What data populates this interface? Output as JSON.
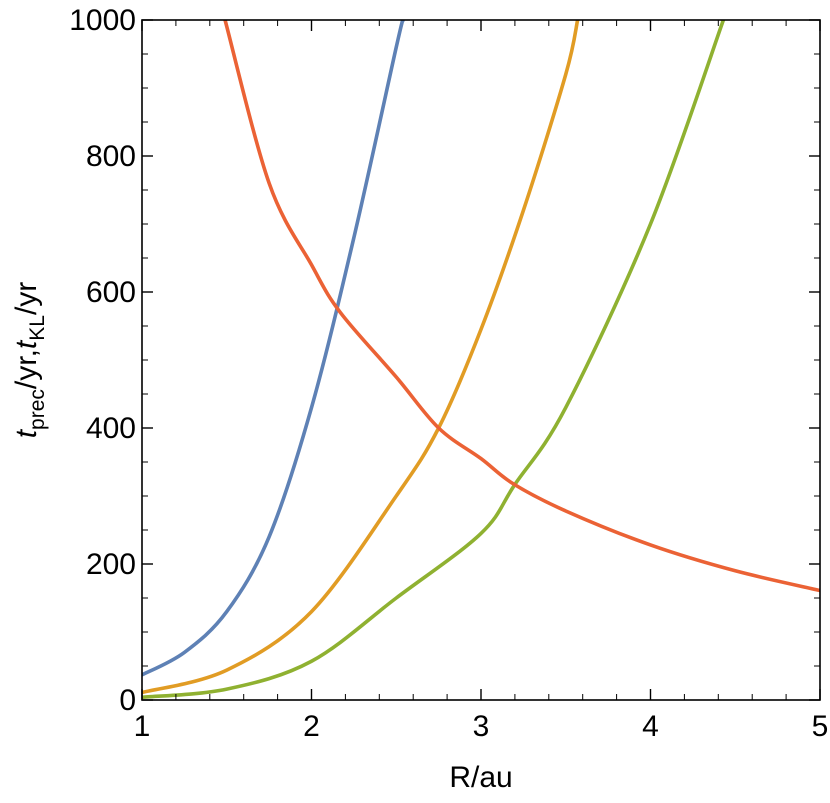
{
  "chart_data": {
    "type": "line",
    "xlabel": "R/au",
    "ylabel": {
      "t1": "t",
      "s1": "prec",
      "m1": "/yr,",
      "t2": "t",
      "s2": "KL",
      "m2": "/yr"
    },
    "xlim": [
      1,
      5
    ],
    "ylim": [
      0,
      1000
    ],
    "x_ticks": [
      1,
      2,
      3,
      4,
      5
    ],
    "y_ticks": [
      0,
      200,
      400,
      600,
      800,
      1000
    ],
    "x_tick_labels": [
      "1",
      "2",
      "3",
      "4",
      "5"
    ],
    "y_tick_labels": [
      "0",
      "200",
      "400",
      "600",
      "800",
      "1000"
    ],
    "grid": false,
    "series": [
      {
        "color": "#5E81B5",
        "x": [
          1.0,
          1.25,
          1.5,
          1.75,
          2.0,
          2.25,
          2.5,
          2.54
        ],
        "y": [
          37,
          70,
          130,
          240,
          430,
          680,
          960,
          1000
        ]
      },
      {
        "color": "#E19C24",
        "x": [
          1.0,
          1.5,
          2.0,
          2.5,
          2.75,
          3.0,
          3.25,
          3.5,
          3.57
        ],
        "y": [
          11,
          44,
          130,
          300,
          400,
          545,
          720,
          920,
          1000
        ]
      },
      {
        "color": "#8FB131",
        "x": [
          1.0,
          1.5,
          2.0,
          2.5,
          3.0,
          3.2,
          3.5,
          4.0,
          4.43
        ],
        "y": [
          4,
          16,
          57,
          150,
          245,
          317,
          430,
          700,
          1000
        ]
      },
      {
        "color": "#EB6235",
        "x": [
          1.49,
          1.75,
          2.0,
          2.17,
          2.5,
          2.75,
          3.0,
          3.19,
          3.5,
          4.0,
          4.5,
          5.0
        ],
        "y": [
          1000,
          760,
          640,
          570,
          475,
          400,
          355,
          318,
          278,
          228,
          190,
          161
        ]
      }
    ]
  }
}
